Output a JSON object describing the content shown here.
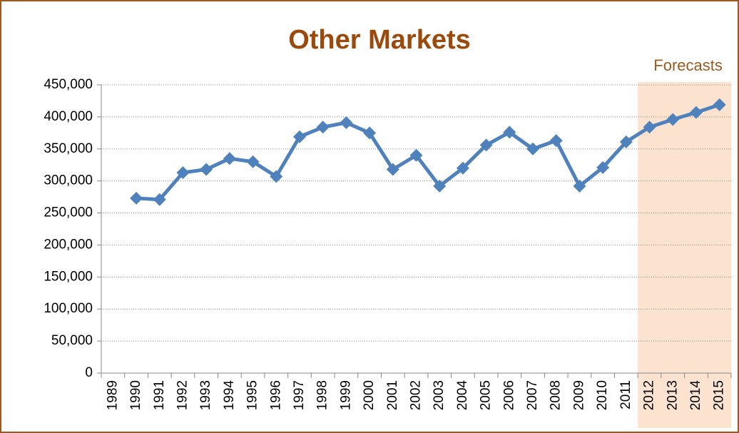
{
  "chart_data": {
    "type": "line",
    "title": "Other Markets",
    "categories": [
      "1989",
      "1990",
      "1991",
      "1992",
      "1993",
      "1994",
      "1995",
      "1996",
      "1997",
      "1998",
      "1999",
      "2000",
      "2001",
      "2002",
      "2003",
      "2004",
      "2005",
      "2006",
      "2007",
      "2008",
      "2009",
      "2010",
      "2011",
      "2012",
      "2013",
      "2014",
      "2015"
    ],
    "series": [
      {
        "name": "Other Markets",
        "color": "#4f81bd",
        "values": [
          null,
          273000,
          271000,
          313000,
          318000,
          335000,
          330000,
          307000,
          369000,
          384000,
          391000,
          375000,
          318000,
          340000,
          292000,
          320000,
          356000,
          376000,
          350000,
          363000,
          292000,
          321000,
          361000,
          384000,
          396000,
          407000,
          419000
        ]
      }
    ],
    "ylim": [
      0,
      450000
    ],
    "yticks": [
      0,
      {
        "value": 50000,
        "label": "50,000"
      },
      {
        "value": 100000,
        "label": "100,000"
      },
      {
        "value": 150000,
        "label": "150,000"
      },
      {
        "value": 200000,
        "label": "200,000"
      },
      {
        "value": 250000,
        "label": "250,000"
      },
      {
        "value": 300000,
        "label": "300,000"
      },
      {
        "value": 350000,
        "label": "350,000"
      },
      {
        "value": 400000,
        "label": "400,000"
      },
      {
        "value": 450000,
        "label": "450,000"
      }
    ],
    "grid": true,
    "annotation": {
      "text": "Forecasts",
      "from": "2012",
      "to": "2015",
      "color": "#fbd9bf"
    }
  }
}
